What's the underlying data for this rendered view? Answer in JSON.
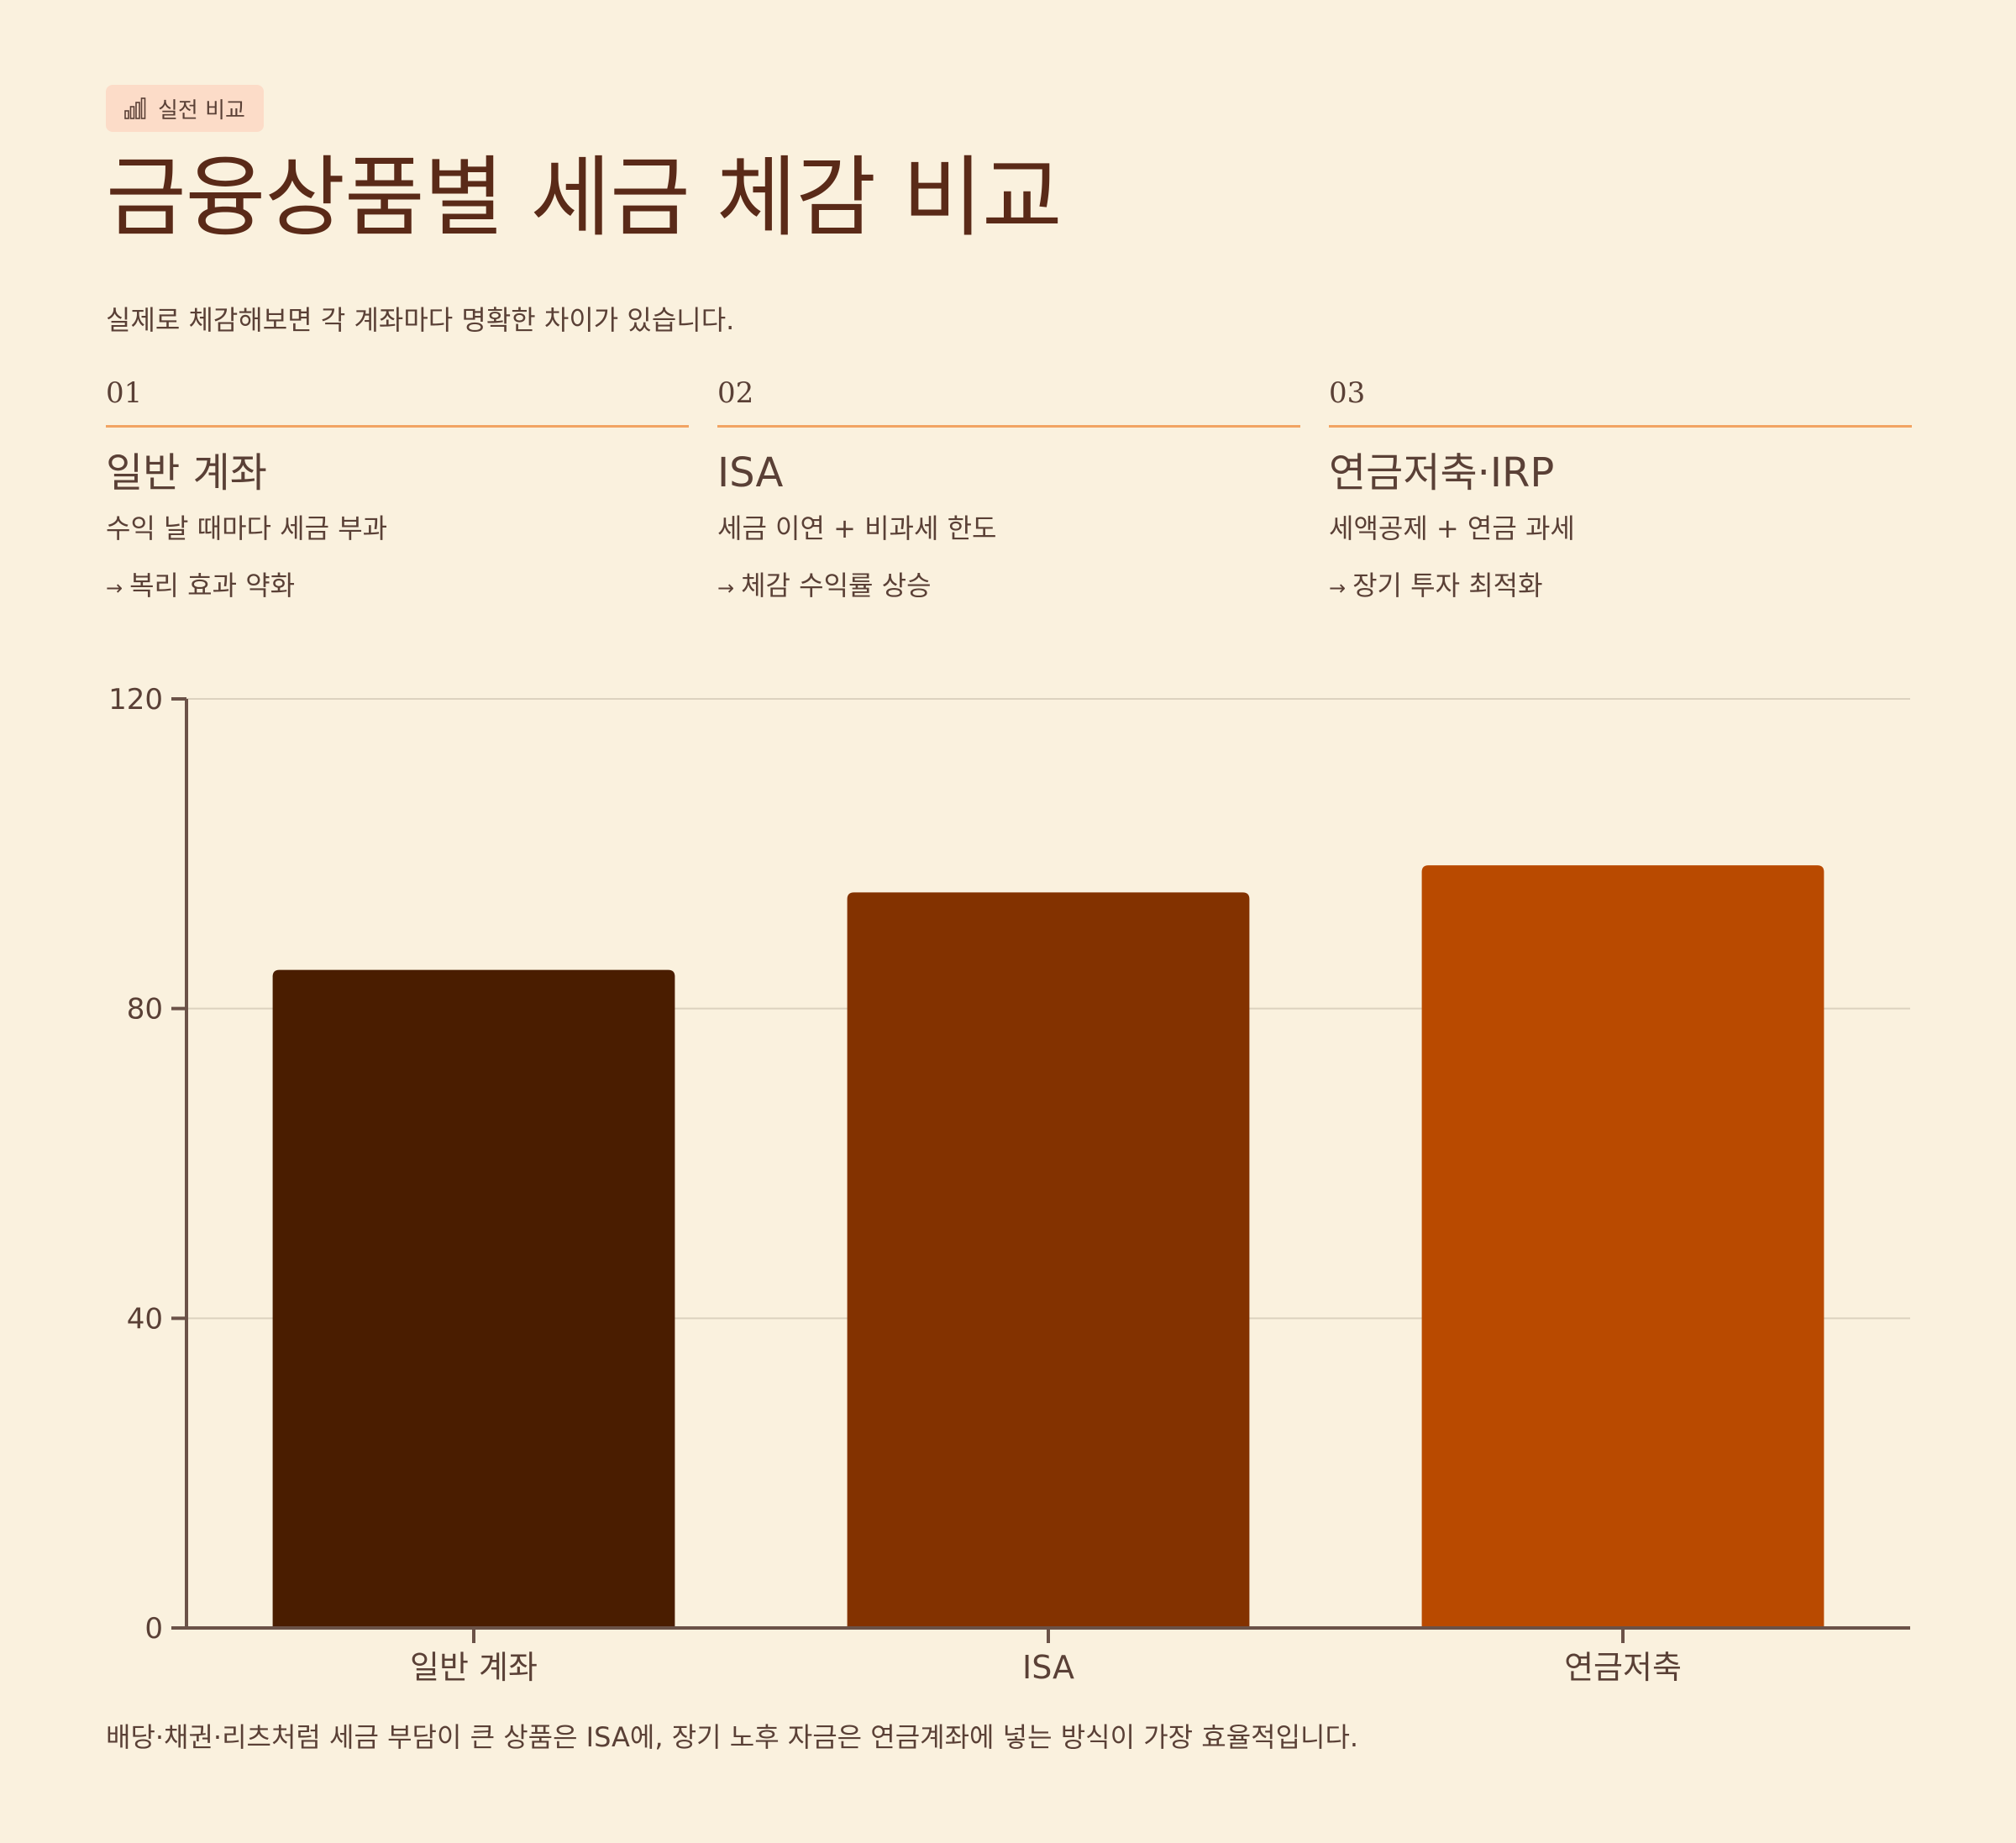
{
  "badge": {
    "label": "실전 비교",
    "icon": "bar-chart-icon"
  },
  "title": "금융상품별 세금 체감 비교",
  "subtitle": "실제로 체감해보면 각 계좌마다 명확한 차이가 있습니다.",
  "columns": [
    {
      "num": "01",
      "title": "일반 계좌",
      "line1": "수익 날 때마다 세금 부과",
      "arrow": "→",
      "line2": "복리 효과 약화"
    },
    {
      "num": "02",
      "title": "ISA",
      "line1": "세금 이연 + 비과세 한도",
      "arrow": "→",
      "line2": "체감 수익률 상승"
    },
    {
      "num": "03",
      "title": "연금저축·IRP",
      "line1": "세액공제 + 연금 과세",
      "arrow": "→",
      "line2": "장기 투자 최적화"
    }
  ],
  "chart_data": {
    "type": "bar",
    "categories": [
      "일반 계좌",
      "ISA",
      "연금저축"
    ],
    "values": [
      85,
      95,
      98.5
    ],
    "colors": [
      "#4a1d00",
      "#833200",
      "#b94a00"
    ],
    "ylim": [
      0,
      120
    ],
    "yticks": [
      "0",
      "40",
      "80",
      "120"
    ],
    "ytick_values": [
      0,
      40,
      80,
      120
    ],
    "grid": true,
    "title": "",
    "xlabel": "",
    "ylabel": ""
  },
  "footnote": "배당·채권·리츠처럼 세금 부담이 큰 상품은 ISA에, 장기 노후 자금은 연금계좌에 넣는 방식이 가장 효율적입니다."
}
